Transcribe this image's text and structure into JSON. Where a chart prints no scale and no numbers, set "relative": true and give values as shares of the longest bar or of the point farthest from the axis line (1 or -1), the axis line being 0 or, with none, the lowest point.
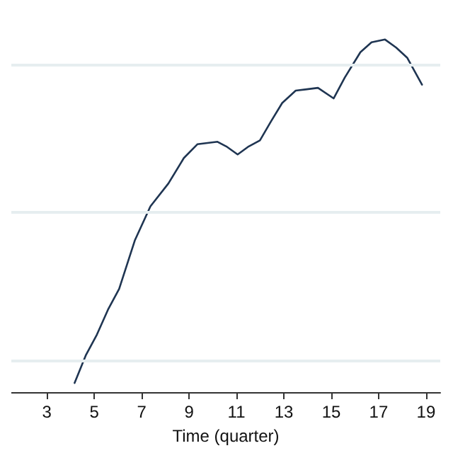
{
  "chart_data": {
    "type": "line",
    "xlabel": "Time (quarter)",
    "relative": true,
    "xlim": [
      1.5,
      19.6
    ],
    "xticks": [
      3,
      5,
      7,
      9,
      11,
      13,
      15,
      17,
      19
    ],
    "ref_lines": [
      {
        "axis": "y",
        "value": 0.093,
        "color": "#e6eef0"
      },
      {
        "axis": "y",
        "value": 0.51,
        "color": "#e6eef0"
      },
      {
        "axis": "y",
        "value": 0.93,
        "color": "#e6eef0"
      }
    ],
    "marker": "none",
    "line_style": "solid",
    "series": [
      {
        "color": "#1f3552",
        "x": [
          4.17,
          4.64,
          5.11,
          5.58,
          6.05,
          6.71,
          7.37,
          8.13,
          8.78,
          9.35,
          10.2,
          10.57,
          11.05,
          11.52,
          11.99,
          12.46,
          12.93,
          13.5,
          13.97,
          14.44,
          15.1,
          15.57,
          16.23,
          16.7,
          17.27,
          17.74,
          18.21,
          18.83
        ],
        "values": [
          0.026,
          0.104,
          0.163,
          0.234,
          0.293,
          0.43,
          0.527,
          0.592,
          0.664,
          0.703,
          0.71,
          0.697,
          0.674,
          0.697,
          0.714,
          0.768,
          0.82,
          0.855,
          0.859,
          0.863,
          0.833,
          0.892,
          0.964,
          0.992,
          1,
          0.977,
          0.948,
          0.872
        ]
      }
    ]
  }
}
